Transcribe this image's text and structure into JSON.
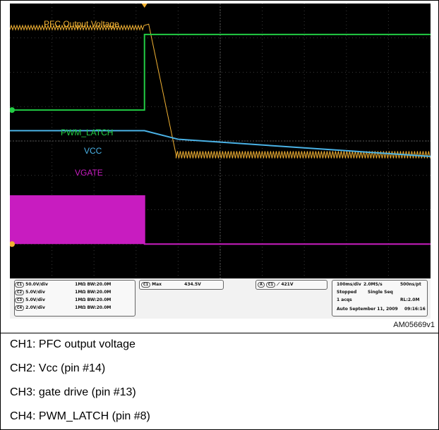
{
  "chart_data": {
    "type": "line",
    "xlim": [
      0,
      1000
    ],
    "ylim": [
      0,
      8
    ],
    "grid": "on",
    "annotations": {
      "pfc_label": "PFC Output Voltage",
      "pwm_label": "PWM_LATCH",
      "vcc_label": "VCC",
      "vgate_label": "VGATE"
    },
    "series": [
      {
        "name": "PFC Output Voltage",
        "color": "#f2b233",
        "x": [
          0,
          320,
          330,
          395,
          1000
        ],
        "y": [
          7.3,
          7.3,
          7.4,
          3.6,
          3.6
        ]
      },
      {
        "name": "PWM_LATCH",
        "color": "#22cc44",
        "x": [
          0,
          320,
          320,
          1000
        ],
        "y": [
          4.9,
          4.9,
          7.1,
          7.1
        ]
      },
      {
        "name": "VCC",
        "color": "#4ab2e6",
        "x": [
          0,
          320,
          400,
          1000
        ],
        "y": [
          4.3,
          4.3,
          4.05,
          3.55
        ]
      },
      {
        "name": "VGATE",
        "color": "#c81cc0",
        "x": [
          0,
          320,
          320,
          1000
        ],
        "y": [
          2.4,
          2.4,
          1.0,
          1.0
        ],
        "fill_until_x": 320
      }
    ]
  },
  "scope_panel": {
    "channels": [
      {
        "id": "C1",
        "scale": "50.0V/div",
        "coupling": "1MΩ BW:20.0M"
      },
      {
        "id": "C2",
        "scale": "5.0V/div",
        "coupling": "1MΩ BW:20.0M"
      },
      {
        "id": "C3",
        "scale": "5.0V/div",
        "coupling": "1MΩ BW:20.0M"
      },
      {
        "id": "C4",
        "scale": "2.0V/div",
        "coupling": "1MΩ BW:20.0M"
      }
    ],
    "measurement": {
      "channel": "C1",
      "type": "Max",
      "value": "434.5V"
    },
    "trigger": {
      "source": "A",
      "channel": "C1",
      "level": "421V"
    },
    "timebase": "100ms/div",
    "sample_rate": "2.0MS/s",
    "resolution": "500ns/pt",
    "state": "Stopped",
    "mode": "Single Seq",
    "acqs": "1 acqs",
    "record_length": "RL:2.0M",
    "auto_label": "Auto",
    "date": "September 11, 2009",
    "time": "09:16:16"
  },
  "figure_code": "AM05669v1",
  "captions": [
    "CH1: PFC output voltage",
    "CH2: Vcc (pin #14)",
    "CH3: gate drive (pin #13)",
    "CH4: PWM_LATCH (pin #8)"
  ]
}
